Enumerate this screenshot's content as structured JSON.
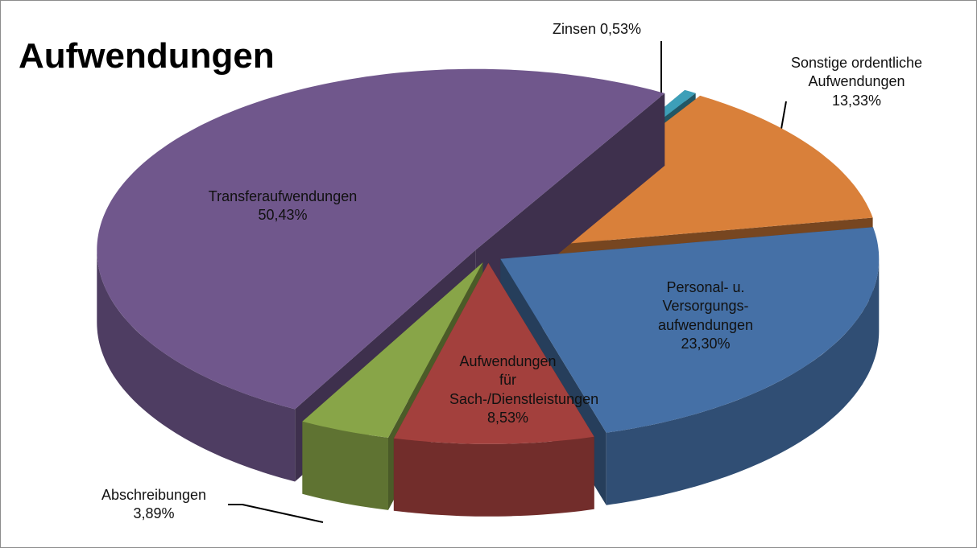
{
  "chart_data": {
    "type": "pie",
    "title": "Aufwendungen",
    "categories": [
      "Zinsen",
      "Sonstige ordentliche Aufwendungen",
      "Personal- u. Versorgungs-aufwendungen",
      "Aufwendungen für Sach-/Dienstleistungen",
      "Abschreibungen",
      "Transferaufwendungen"
    ],
    "values": [
      0.53,
      13.33,
      23.3,
      8.53,
      3.89,
      50.43
    ],
    "value_labels": [
      "0,53%",
      "13,33%",
      "23,30%",
      "8,53%",
      "3,89%",
      "50,43%"
    ],
    "colors": [
      "#3d9fb8",
      "#d9803a",
      "#4570a6",
      "#a3403d",
      "#88a548",
      "#70578c"
    ]
  }
}
